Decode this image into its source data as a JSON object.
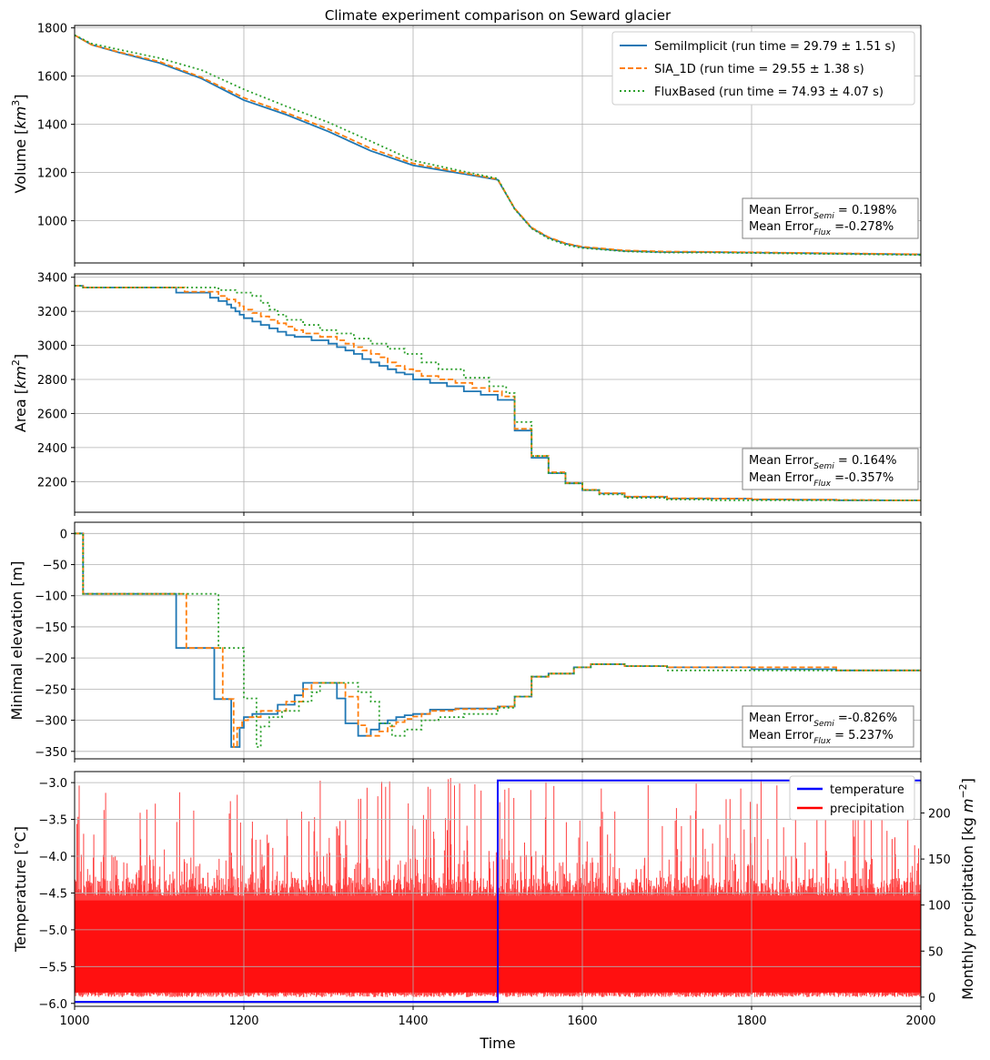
{
  "title": "Climate experiment comparison on Seward glacier",
  "colors": {
    "semi": "#1f77b4",
    "sia": "#ff7f0e",
    "flux": "#2ca02c",
    "temperature": "#0000ff",
    "precipitation": "#ff0000",
    "grid": "#b0b0b0"
  },
  "xaxis": {
    "label": "Time",
    "ticks": [
      "1000",
      "1200",
      "1400",
      "1600",
      "1800",
      "2000"
    ]
  },
  "legend": {
    "semi": "SemiImplicit (run time = 29.79 ± 1.51 s)",
    "sia": "SIA_1D (run time = 29.55 ± 1.38 s)",
    "flux": "FluxBased (run time = 74.93 ± 4.07 s)"
  },
  "error_boxes": [
    [
      "Mean Error",
      "Semi",
      " =  0.198%",
      "Mean Error",
      "Flux",
      " =-0.278%"
    ],
    [
      "Mean Error",
      "Semi",
      " =  0.164%",
      "Mean Error",
      "Flux",
      " =-0.357%"
    ],
    [
      "Mean Error",
      "Semi",
      " =-0.826%",
      "Mean Error",
      "Flux",
      " =  5.237%"
    ]
  ],
  "chart_data": [
    {
      "type": "line",
      "ylabel": "Volume [km³]",
      "xlim": [
        1000,
        2000
      ],
      "ylim": [
        825,
        1810
      ],
      "yticks": [
        1000,
        1200,
        1400,
        1600,
        1800
      ],
      "grid": true,
      "legend_position": "top-right",
      "series": [
        {
          "name": "SemiImplicit (run time = 29.79 ± 1.51 s)",
          "style": "solid",
          "key": "semi",
          "x": [
            1000,
            1020,
            1050,
            1100,
            1150,
            1200,
            1250,
            1300,
            1350,
            1400,
            1450,
            1500,
            1520,
            1540,
            1560,
            1580,
            1600,
            1650,
            1700,
            1750,
            1800,
            1850,
            1900,
            1950,
            2000
          ],
          "y": [
            1770,
            1730,
            1700,
            1655,
            1590,
            1500,
            1440,
            1370,
            1290,
            1230,
            1200,
            1170,
            1050,
            970,
            930,
            905,
            890,
            875,
            870,
            870,
            868,
            866,
            864,
            862,
            860
          ]
        },
        {
          "name": "SIA_1D (run time = 29.55 ± 1.38 s)",
          "style": "dashed",
          "key": "sia",
          "x": [
            1000,
            1020,
            1050,
            1100,
            1150,
            1200,
            1250,
            1300,
            1350,
            1400,
            1450,
            1500,
            1520,
            1540,
            1560,
            1580,
            1600,
            1650,
            1700,
            1750,
            1800,
            1850,
            1900,
            1950,
            2000
          ],
          "y": [
            1770,
            1730,
            1702,
            1660,
            1595,
            1510,
            1448,
            1380,
            1300,
            1238,
            1205,
            1172,
            1052,
            972,
            932,
            907,
            892,
            877,
            872,
            871,
            869,
            867,
            865,
            863,
            861
          ]
        },
        {
          "name": "FluxBased (run time = 74.93 ± 4.07 s)",
          "style": "dotted",
          "key": "flux",
          "x": [
            1000,
            1020,
            1050,
            1100,
            1150,
            1200,
            1250,
            1300,
            1350,
            1400,
            1450,
            1500,
            1520,
            1540,
            1560,
            1580,
            1600,
            1650,
            1700,
            1750,
            1800,
            1850,
            1900,
            1950,
            2000
          ],
          "y": [
            1770,
            1735,
            1712,
            1675,
            1625,
            1545,
            1475,
            1408,
            1330,
            1250,
            1212,
            1175,
            1048,
            968,
            926,
            901,
            887,
            873,
            868,
            868,
            866,
            864,
            862,
            860,
            858
          ]
        }
      ]
    },
    {
      "type": "line",
      "ylabel": "Area [km²]",
      "xlim": [
        1000,
        2000
      ],
      "ylim": [
        2020,
        3420
      ],
      "yticks": [
        2200,
        2400,
        2600,
        2800,
        3000,
        3200,
        3400
      ],
      "grid": true,
      "series": [
        {
          "name": "SemiImplicit",
          "style": "solid",
          "key": "semi",
          "step": true,
          "x": [
            1000,
            1010,
            1120,
            1160,
            1170,
            1180,
            1185,
            1190,
            1195,
            1200,
            1210,
            1220,
            1230,
            1240,
            1250,
            1260,
            1280,
            1300,
            1310,
            1320,
            1330,
            1340,
            1350,
            1360,
            1370,
            1380,
            1390,
            1400,
            1420,
            1440,
            1460,
            1480,
            1500,
            1520,
            1540,
            1560,
            1580,
            1600,
            1620,
            1650,
            1700,
            1750,
            1800,
            1850,
            1900,
            1950,
            2000
          ],
          "y": [
            3350,
            3340,
            3310,
            3280,
            3260,
            3240,
            3220,
            3200,
            3180,
            3160,
            3140,
            3120,
            3100,
            3080,
            3060,
            3050,
            3030,
            3010,
            2990,
            2970,
            2950,
            2920,
            2900,
            2880,
            2860,
            2840,
            2830,
            2800,
            2780,
            2760,
            2730,
            2710,
            2680,
            2500,
            2340,
            2250,
            2190,
            2150,
            2130,
            2110,
            2100,
            2100,
            2095,
            2093,
            2090,
            2090,
            2090
          ]
        },
        {
          "name": "SIA_1D",
          "style": "dashed",
          "key": "sia",
          "step": true,
          "x": [
            1000,
            1010,
            1130,
            1170,
            1180,
            1190,
            1195,
            1200,
            1210,
            1220,
            1230,
            1240,
            1250,
            1260,
            1270,
            1290,
            1310,
            1320,
            1330,
            1340,
            1350,
            1360,
            1370,
            1380,
            1390,
            1400,
            1410,
            1430,
            1450,
            1470,
            1490,
            1505,
            1520,
            1540,
            1560,
            1580,
            1600,
            1620,
            1650,
            1700,
            1750,
            1800,
            1850,
            1900,
            1950,
            2000
          ],
          "y": [
            3350,
            3340,
            3315,
            3290,
            3270,
            3250,
            3230,
            3210,
            3190,
            3170,
            3150,
            3130,
            3110,
            3090,
            3070,
            3050,
            3030,
            3010,
            2990,
            2970,
            2950,
            2930,
            2900,
            2880,
            2860,
            2850,
            2820,
            2800,
            2780,
            2750,
            2730,
            2700,
            2510,
            2350,
            2255,
            2192,
            2152,
            2132,
            2112,
            2102,
            2100,
            2096,
            2094,
            2092,
            2090,
            2090
          ]
        },
        {
          "name": "FluxBased",
          "style": "dotted",
          "key": "flux",
          "step": true,
          "x": [
            1000,
            1010,
            1170,
            1190,
            1210,
            1220,
            1230,
            1240,
            1250,
            1270,
            1290,
            1310,
            1330,
            1350,
            1370,
            1390,
            1410,
            1430,
            1460,
            1490,
            1510,
            1520,
            1540,
            1560,
            1580,
            1600,
            1620,
            1650,
            1700,
            1750,
            1800,
            1850,
            1900,
            1950,
            2000
          ],
          "y": [
            3350,
            3340,
            3325,
            3310,
            3290,
            3250,
            3210,
            3180,
            3150,
            3120,
            3090,
            3070,
            3040,
            3010,
            2980,
            2950,
            2900,
            2860,
            2810,
            2760,
            2720,
            2550,
            2350,
            2250,
            2190,
            2150,
            2125,
            2105,
            2095,
            2090,
            2090,
            2090,
            2090,
            2090,
            2090
          ]
        }
      ]
    },
    {
      "type": "line",
      "ylabel": "Minimal elevation [m]",
      "xlim": [
        1000,
        2000
      ],
      "ylim": [
        -362,
        18
      ],
      "yticks": [
        0,
        -50,
        -100,
        -150,
        -200,
        -250,
        -300,
        -350
      ],
      "grid": true,
      "series": [
        {
          "name": "SemiImplicit",
          "style": "solid",
          "key": "semi",
          "step": true,
          "x": [
            1000,
            1010,
            1120,
            1135,
            1165,
            1180,
            1185,
            1195,
            1200,
            1210,
            1240,
            1260,
            1270,
            1280,
            1310,
            1320,
            1335,
            1350,
            1360,
            1370,
            1380,
            1390,
            1400,
            1420,
            1450,
            1500,
            1520,
            1540,
            1560,
            1590,
            1610,
            1650,
            1700,
            1800,
            1900,
            2000
          ],
          "y": [
            0,
            -97,
            -184,
            -184,
            -266,
            -266,
            -343,
            -312,
            -295,
            -290,
            -275,
            -260,
            -240,
            -240,
            -265,
            -305,
            -325,
            -315,
            -305,
            -300,
            -295,
            -292,
            -290,
            -283,
            -281,
            -278,
            -262,
            -230,
            -225,
            -215,
            -210,
            -213,
            -215,
            -218,
            -220,
            -220
          ]
        },
        {
          "name": "SIA_1D",
          "style": "dashed",
          "key": "sia",
          "step": true,
          "x": [
            1000,
            1010,
            1132,
            1175,
            1188,
            1192,
            1198,
            1205,
            1220,
            1250,
            1270,
            1280,
            1290,
            1320,
            1335,
            1345,
            1360,
            1370,
            1380,
            1390,
            1400,
            1410,
            1420,
            1450,
            1500,
            1520,
            1540,
            1560,
            1590,
            1610,
            1650,
            1700,
            1800,
            1900,
            2000
          ],
          "y": [
            0,
            -97,
            -184,
            -266,
            -343,
            -312,
            -300,
            -295,
            -285,
            -270,
            -250,
            -240,
            -240,
            -262,
            -308,
            -325,
            -318,
            -310,
            -303,
            -298,
            -294,
            -290,
            -285,
            -282,
            -278,
            -262,
            -230,
            -225,
            -215,
            -210,
            -213,
            -215,
            -215,
            -220,
            -220
          ]
        },
        {
          "name": "FluxBased",
          "style": "dotted",
          "key": "flux",
          "step": true,
          "x": [
            1000,
            1010,
            1170,
            1200,
            1215,
            1220,
            1230,
            1245,
            1265,
            1280,
            1290,
            1310,
            1325,
            1335,
            1350,
            1360,
            1375,
            1390,
            1410,
            1430,
            1460,
            1500,
            1520,
            1540,
            1560,
            1590,
            1610,
            1650,
            1700,
            1800,
            1900,
            2000
          ],
          "y": [
            0,
            -97,
            -184,
            -265,
            -343,
            -310,
            -295,
            -285,
            -270,
            -255,
            -240,
            -240,
            -240,
            -255,
            -270,
            -305,
            -325,
            -315,
            -300,
            -295,
            -290,
            -280,
            -262,
            -230,
            -225,
            -215,
            -210,
            -213,
            -220,
            -220,
            -220,
            -220
          ]
        }
      ]
    },
    {
      "type": "line",
      "ylabel": "Temperature [°C]",
      "y2label": "Monthly precipitation [kg m⁻²]",
      "xlim": [
        1000,
        2000
      ],
      "ylim": [
        -6.04,
        -2.85
      ],
      "yticks": [
        -3.0,
        -3.5,
        -4.0,
        -4.5,
        -5.0,
        -5.5,
        -6.0
      ],
      "y2lim": [
        -10,
        245
      ],
      "y2ticks": [
        0,
        50,
        100,
        150,
        200
      ],
      "grid": true,
      "legend_position": "top-right",
      "series": [
        {
          "name": "temperature",
          "key": "temperature",
          "axis": "left",
          "x": [
            1000,
            1500,
            1500,
            2000
          ],
          "y": [
            -5.98,
            -5.98,
            -2.97,
            -2.97
          ]
        },
        {
          "name": "precipitation",
          "key": "precipitation",
          "axis": "right",
          "description_range": [
            0,
            240
          ],
          "typical_band": [
            0,
            110
          ]
        }
      ]
    }
  ]
}
